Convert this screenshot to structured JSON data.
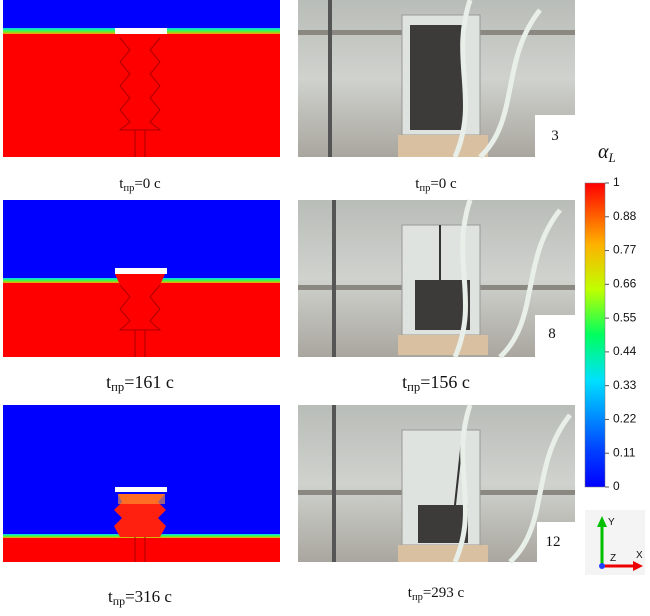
{
  "captions": [
    {
      "t": "t",
      "sub": "пр",
      "rest": "=0 с"
    },
    {
      "t": "t",
      "sub": "пр",
      "rest": "=0 с"
    },
    {
      "t": "t",
      "sub": "пр",
      "rest": "=161 с"
    },
    {
      "t": "t",
      "sub": "пр",
      "rest": "=156 с"
    },
    {
      "t": "t",
      "sub": "пр",
      "rest": "=316 с"
    },
    {
      "t": "t",
      "sub": "пр",
      "rest": "=293 с"
    }
  ],
  "photo_labels": [
    "3",
    "8",
    "12"
  ],
  "colorbar": {
    "symbol": "α",
    "sub": "L",
    "ticks": [
      "1",
      "0.88",
      "0.77",
      "0.66",
      "0.55",
      "0.44",
      "0.33",
      "0.22",
      "0.11",
      "0"
    ]
  },
  "axes": {
    "y": "Y",
    "z": "Z",
    "x": "X"
  }
}
